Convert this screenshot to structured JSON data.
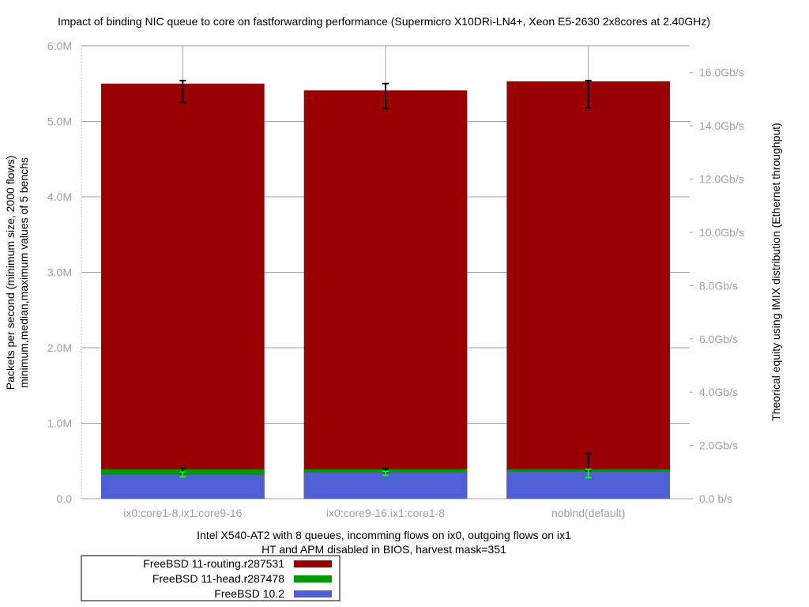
{
  "chart_data": {
    "type": "bar",
    "title": "Impact of binding NIC queue to core on fastforwarding performance (Supermicro X10DRi-LN4+, Xeon E5-2630 2x8cores at 2.40GHz)",
    "xlabel_lines": [
      "Intel X540-AT2 with 8 queues, incomming flows on ix0, outgoing flows on ix1",
      "HT and APM disabled in BIOS, harvest mask=351"
    ],
    "ylabel_lines": [
      "Packets per second (minimum size, 2000 flows)",
      "minimum,median,maximum values of 5 benchs"
    ],
    "y2label": "Theorical equity using IMIX distribution (Ethernet throughput)",
    "categories": [
      "ix0:core1-8,ix1:core9-16",
      "ix0:core9-16,ix1:core1-8",
      "nobind(default)"
    ],
    "ylim": [
      0,
      6000000
    ],
    "yticks": [
      {
        "value": 0,
        "label": "0.0"
      },
      {
        "value": 1000000,
        "label": "1.0M"
      },
      {
        "value": 2000000,
        "label": "2.0M"
      },
      {
        "value": 3000000,
        "label": "3.0M"
      },
      {
        "value": 4000000,
        "label": "4.0M"
      },
      {
        "value": 5000000,
        "label": "5.0M"
      },
      {
        "value": 6000000,
        "label": "6.0M"
      }
    ],
    "y2ticks": [
      {
        "value": 0,
        "label": "0.0 b/s"
      },
      {
        "value": 2,
        "label": "2.0Gb/s"
      },
      {
        "value": 4,
        "label": "4.0Gb/s"
      },
      {
        "value": 6,
        "label": "6.0Gb/s"
      },
      {
        "value": 8,
        "label": "8.0Gb/s"
      },
      {
        "value": 10,
        "label": "10.0Gb/s"
      },
      {
        "value": 12,
        "label": "12.0Gb/s"
      },
      {
        "value": 14,
        "label": "14.0Gb/s"
      },
      {
        "value": 16,
        "label": "16.0Gb/s"
      }
    ],
    "y2lim": [
      0,
      17.0
    ],
    "series": [
      {
        "name": "FreeBSD 11-routing.r287531",
        "color": "#990000",
        "values": [
          5500000,
          5410000,
          5530000
        ],
        "err_min": [
          5250000,
          5170000,
          5180000
        ],
        "err_max": [
          5540000,
          5500000,
          5540000
        ],
        "err_color": "#000000"
      },
      {
        "name": "FreeBSD 11-head.r287478",
        "color": "#009900",
        "values": [
          390000,
          390000,
          390000
        ],
        "err_min": [
          340000,
          350000,
          370000
        ],
        "err_max": [
          410000,
          400000,
          600000
        ],
        "err_color": "#000000"
      },
      {
        "name": "FreeBSD 10.2",
        "color": "#4f5fd5",
        "values": [
          320000,
          350000,
          360000
        ],
        "err_min": [
          290000,
          310000,
          280000
        ],
        "err_max": [
          350000,
          360000,
          390000
        ],
        "err_color": "#00ff00"
      }
    ],
    "grid": true,
    "legend_position": "bottom-left"
  }
}
